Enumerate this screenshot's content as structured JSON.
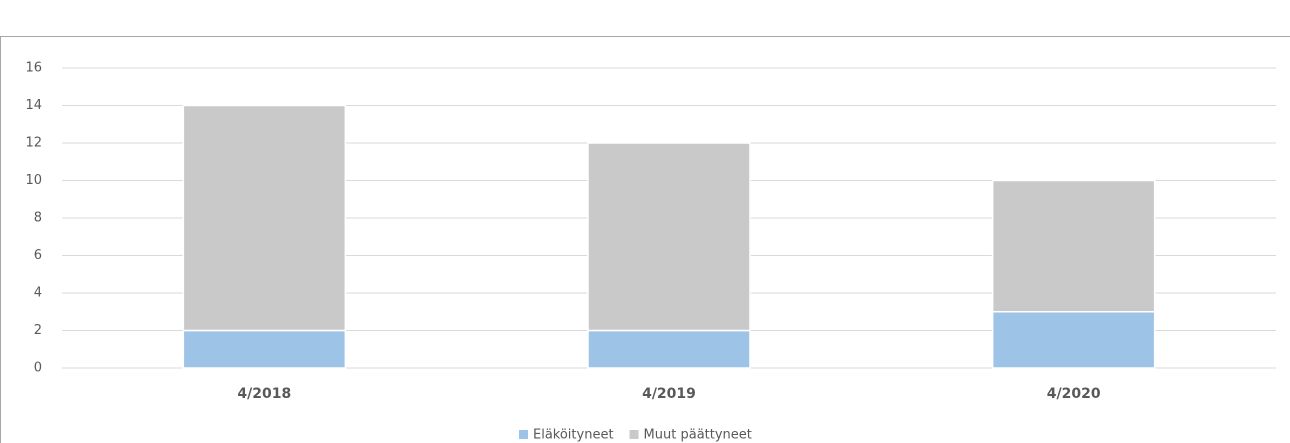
{
  "chart_data": {
    "type": "stacked_bar",
    "categories": [
      "4/2018",
      "4/2019",
      "4/2020"
    ],
    "series": [
      {
        "name": "Eläköityneet",
        "color": "#9dc3e6",
        "values": [
          2,
          2,
          3
        ]
      },
      {
        "name": "Muut päättyneet",
        "color": "#c9c9c9",
        "values": [
          12,
          10,
          7
        ]
      }
    ],
    "ylim": [
      0,
      16
    ],
    "yticks": [
      0,
      2,
      4,
      6,
      8,
      10,
      12,
      14,
      16
    ],
    "grid": true,
    "legend": "bottom"
  }
}
